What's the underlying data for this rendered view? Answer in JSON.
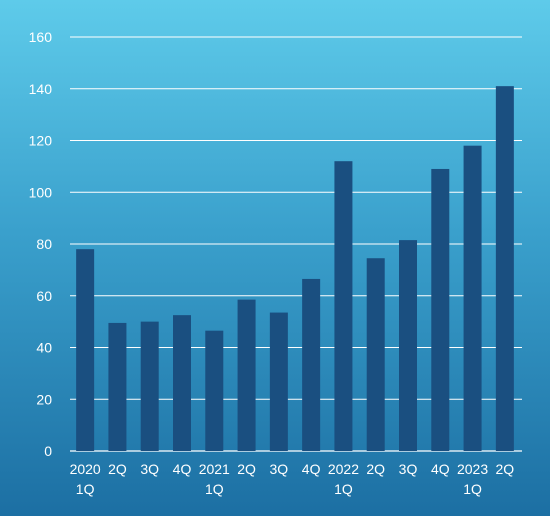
{
  "chart_data": {
    "type": "bar",
    "categories": [
      [
        "2020",
        "1Q"
      ],
      [
        "2Q"
      ],
      [
        "3Q"
      ],
      [
        "4Q"
      ],
      [
        "2021",
        "1Q"
      ],
      [
        "2Q"
      ],
      [
        "3Q"
      ],
      [
        "4Q"
      ],
      [
        "2022",
        "1Q"
      ],
      [
        "2Q"
      ],
      [
        "3Q"
      ],
      [
        "4Q"
      ],
      [
        "2023",
        "1Q"
      ],
      [
        "2Q"
      ]
    ],
    "values": [
      78,
      49.5,
      50,
      52.5,
      46.5,
      58.5,
      53.5,
      66.5,
      112,
      74.5,
      81.5,
      109,
      118,
      141
    ],
    "ylim": [
      0,
      160
    ],
    "yticks": [
      0,
      20,
      40,
      60,
      80,
      100,
      120,
      140,
      160
    ],
    "grid": true,
    "colors": {
      "bar": "#1a4f80",
      "grid": "#ffffff",
      "text": "#ffffff"
    }
  }
}
